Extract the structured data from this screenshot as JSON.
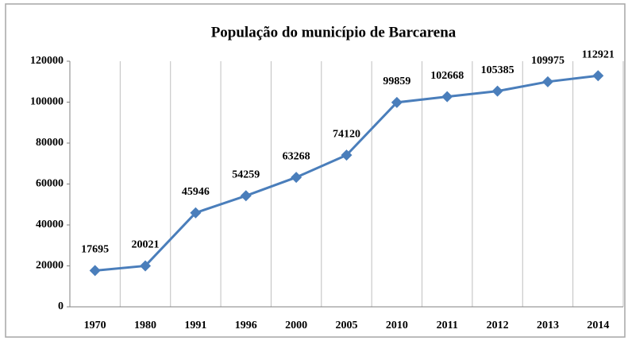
{
  "chart_data": {
    "type": "line",
    "title": "População do município de Barcarena",
    "categories": [
      "1970",
      "1980",
      "1991",
      "1996",
      "2000",
      "2005",
      "2010",
      "2011",
      "2012",
      "2013",
      "2014"
    ],
    "values": [
      17695,
      20021,
      45946,
      54259,
      63268,
      74120,
      99859,
      102668,
      105385,
      109975,
      112921
    ],
    "color": "#4a7ebb",
    "ylim": [
      0,
      120000
    ],
    "yticks": [
      0,
      20000,
      40000,
      60000,
      80000,
      100000,
      120000
    ],
    "grid": true
  }
}
